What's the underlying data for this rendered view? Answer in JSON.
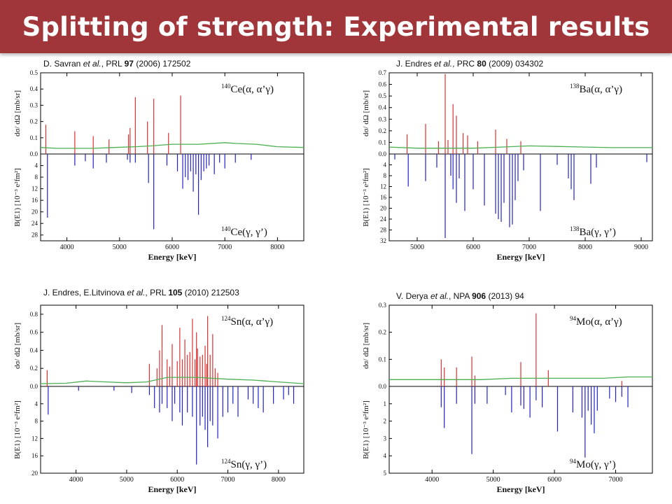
{
  "slide": {
    "title": "Splitting of strength: Experimental results"
  },
  "colors": {
    "title_bg": "#a0363a",
    "red": "#e03030",
    "blue": "#2020d0",
    "green": "#4caf50"
  },
  "panels": [
    {
      "id": "ce140",
      "citation": {
        "authors": "D. Savran",
        "etal": "et al.",
        "journal": ", PRL ",
        "volume": "97",
        "rest": " (2006) 172502"
      },
      "label_top": {
        "pre": "140",
        "sym": "Ce(α, α’γ)"
      },
      "label_bottom": {
        "pre": "140",
        "sym": "Ce(γ, γ’)"
      }
    },
    {
      "id": "ba138",
      "citation": {
        "authors": "J. Endres",
        "etal": "et al.",
        "journal": ", PRC ",
        "volume": "80",
        "rest": " (2009) 034302"
      },
      "label_top": {
        "pre": "138",
        "sym": "Ba(α, α’γ)"
      },
      "label_bottom": {
        "pre": "138",
        "sym": "Ba(γ, γ’)"
      }
    },
    {
      "id": "sn124",
      "citation": {
        "authors": "J. Endres, E.Litvinova",
        "etal": "et al.",
        "journal": ", PRL ",
        "volume": "105",
        "rest": " (2010) 212503"
      },
      "label_top": {
        "pre": "124",
        "sym": "Sn(α, α’γ)"
      },
      "label_bottom": {
        "pre": "124",
        "sym": "Sn(γ, γ’)"
      }
    },
    {
      "id": "mo94",
      "citation": {
        "authors": "V. Derya",
        "etal": "et al.",
        "journal": ", NPA  ",
        "volume": "906",
        "rest": " (2013) 94"
      },
      "label_top": {
        "pre": "94",
        "sym": "Mo(α, α’γ)"
      },
      "label_bottom": {
        "pre": "94",
        "sym": "Mo(γ, γ’)"
      }
    }
  ],
  "chart_data": [
    {
      "type": "bar",
      "title": "",
      "xlabel": "Energy [keV]",
      "ylabel_top": "dσ/ dΩ  [mb/sr]",
      "ylabel_bottom": "B(E1) [10⁻³ e²fm²]",
      "xlim": [
        3500,
        8500
      ],
      "xticks": [
        4000,
        5000,
        6000,
        7000,
        8000
      ],
      "ylim_top": [
        0,
        0.5
      ],
      "yticks_top": [
        "0.0",
        "0.1",
        "0.2",
        "0.3",
        "0.4",
        "0.5"
      ],
      "ylim_bottom": [
        0,
        30
      ],
      "yticks_bottom": [
        "4",
        "8",
        "12",
        "16",
        "20",
        "24",
        "28"
      ],
      "series": [
        {
          "kind": "alpha",
          "x": [
            3600,
            4150,
            4500,
            4800,
            5170,
            5200,
            5300,
            5530,
            5650,
            5930,
            6160
          ],
          "values": [
            0.18,
            0.14,
            0.11,
            0.09,
            0.12,
            0.16,
            0.35,
            0.2,
            0.34,
            0.13,
            0.36
          ]
        },
        {
          "kind": "gamma",
          "x": [
            3630,
            4150,
            4350,
            4500,
            4750,
            5150,
            5200,
            5300,
            5550,
            5650,
            5900,
            6100,
            6200,
            6250,
            6300,
            6350,
            6400,
            6450,
            6500,
            6550,
            6600,
            6650,
            6700,
            6800,
            6900,
            7000,
            7200,
            7500
          ],
          "values": [
            22,
            4,
            2.5,
            5,
            3,
            2,
            3,
            3,
            10,
            26,
            4,
            6,
            12,
            8,
            9,
            6,
            13,
            7,
            21,
            9,
            6,
            5,
            4,
            7,
            3,
            5,
            3,
            2
          ]
        },
        {
          "kind": "threshold",
          "x": [
            3500,
            3800,
            4100,
            4500,
            4900,
            5300,
            5600,
            6000,
            6500,
            7000,
            7200,
            7600,
            8000,
            8500
          ],
          "values": [
            0.04,
            0.035,
            0.035,
            0.035,
            0.04,
            0.045,
            0.05,
            0.06,
            0.06,
            0.07,
            0.065,
            0.06,
            0.045,
            0.04
          ]
        }
      ]
    },
    {
      "type": "bar",
      "title": "",
      "xlabel": "Energy [keV]",
      "ylabel_top": "dσ/ dΩ  [mb/sr]",
      "ylabel_bottom": "B(E1) [10⁻³ e²fm²]",
      "xlim": [
        4500,
        9200
      ],
      "xticks": [
        5000,
        6000,
        7000,
        8000,
        9000
      ],
      "ylim_top": [
        0,
        0.7
      ],
      "yticks_top": [
        "0.0",
        "0.1",
        "0.2",
        "0.3",
        "0.4",
        "0.5",
        "0.6",
        "0.7"
      ],
      "ylim_bottom": [
        0,
        32
      ],
      "yticks_bottom": [
        "4",
        "8",
        "12",
        "16",
        "20",
        "24",
        "28",
        "32"
      ],
      "series": [
        {
          "kind": "alpha",
          "x": [
            4820,
            5150,
            5380,
            5500,
            5550,
            5640,
            5700,
            5820,
            5900,
            6080,
            6400,
            6600,
            6850
          ],
          "values": [
            0.17,
            0.26,
            0.11,
            0.69,
            0.12,
            0.43,
            0.33,
            0.18,
            0.16,
            0.11,
            0.21,
            0.13,
            0.11
          ]
        },
        {
          "kind": "gamma",
          "x": [
            4600,
            4840,
            5150,
            5350,
            5500,
            5600,
            5640,
            5700,
            5750,
            5850,
            6000,
            6200,
            6400,
            6450,
            6500,
            6550,
            6650,
            6700,
            6750,
            6800,
            6900,
            7200,
            7500,
            7700,
            7750,
            7800,
            8100,
            8200,
            9100
          ],
          "values": [
            2,
            12,
            10,
            5,
            31,
            8,
            13,
            18,
            9,
            21,
            13,
            19,
            22,
            24,
            25,
            18,
            27,
            26,
            17,
            10,
            6,
            21,
            4,
            9,
            13,
            17,
            11,
            5,
            3
          ]
        },
        {
          "kind": "threshold",
          "x": [
            4500,
            5000,
            5500,
            6000,
            6500,
            7000,
            7500,
            8000,
            8500,
            9200
          ],
          "values": [
            0.06,
            0.05,
            0.05,
            0.05,
            0.06,
            0.07,
            0.065,
            0.06,
            0.055,
            0.055
          ]
        }
      ]
    },
    {
      "type": "bar",
      "title": "",
      "xlabel": "Energy [keV]",
      "ylabel_top": "dσ/ dΩ  [mb/sr]",
      "ylabel_bottom": "B(E1) [10⁻³ e²fm²]",
      "xlim": [
        3300,
        8500
      ],
      "xticks": [
        4000,
        5000,
        6000,
        7000,
        8000
      ],
      "ylim_top": [
        0,
        0.9
      ],
      "yticks_top": [
        "0.0",
        "0.2",
        "0.4",
        "0.6",
        "0.8"
      ],
      "ylim_bottom": [
        0,
        20
      ],
      "yticks_bottom": [
        "4",
        "8",
        "12",
        "16",
        "20"
      ],
      "series": [
        {
          "kind": "alpha",
          "x": [
            3430,
            5450,
            5600,
            5650,
            5700,
            5800,
            5850,
            5900,
            6000,
            6050,
            6100,
            6150,
            6200,
            6250,
            6300,
            6350,
            6380,
            6400,
            6450,
            6500,
            6550,
            6580,
            6600,
            6650,
            6700,
            6750,
            6800
          ],
          "values": [
            0.18,
            0.25,
            0.2,
            0.4,
            0.68,
            0.3,
            0.22,
            0.47,
            0.28,
            0.65,
            0.3,
            0.52,
            0.35,
            0.38,
            0.75,
            0.3,
            0.6,
            0.42,
            0.33,
            0.35,
            0.45,
            0.25,
            0.78,
            0.35,
            0.58,
            0.2,
            0.15
          ]
        },
        {
          "kind": "gamma",
          "x": [
            3450,
            4050,
            4750,
            5100,
            5450,
            5550,
            5650,
            5700,
            5800,
            5900,
            5950,
            6050,
            6100,
            6200,
            6300,
            6380,
            6450,
            6500,
            6550,
            6600,
            6650,
            6700,
            6800,
            6900,
            7000,
            7100,
            7200,
            7400,
            7500,
            7600,
            7700,
            7900,
            8100,
            8200,
            8300
          ],
          "values": [
            6.5,
            1,
            1,
            1.5,
            2,
            5,
            6,
            4,
            5,
            8,
            4,
            6,
            9,
            6,
            7,
            18,
            9,
            7,
            10,
            14,
            8,
            9,
            12,
            7,
            6,
            4,
            7,
            3,
            4,
            5,
            6,
            4,
            3,
            2,
            4
          ]
        },
        {
          "kind": "threshold",
          "x": [
            3300,
            3800,
            4200,
            4600,
            5000,
            5400,
            5800,
            6400,
            7000,
            7500,
            8000,
            8500
          ],
          "values": [
            0.03,
            0.035,
            0.06,
            0.05,
            0.04,
            0.05,
            0.1,
            0.1,
            0.08,
            0.07,
            0.05,
            0.03
          ]
        }
      ]
    },
    {
      "type": "bar",
      "title": "",
      "xlabel": "Energy [keV]",
      "ylabel_top": "dσ/ dΩ  [mb/sr]",
      "ylabel_bottom": "B(E1) [10⁻³ e²fm²]",
      "xlim": [
        3300,
        7600
      ],
      "xticks": [
        4000,
        5000,
        6000,
        7000
      ],
      "ylim_top": [
        0,
        0.3
      ],
      "yticks_top": [
        "0.0",
        "0.1",
        "0.2",
        "0.3"
      ],
      "ylim_bottom": [
        0,
        5
      ],
      "yticks_bottom": [
        "1",
        "2",
        "3",
        "4",
        "5"
      ],
      "series": [
        {
          "kind": "alpha",
          "x": [
            4150,
            4200,
            4400,
            4650,
            4700,
            5450,
            5700,
            5900,
            7100
          ],
          "values": [
            0.1,
            0.07,
            0.07,
            0.11,
            0.04,
            0.09,
            0.27,
            0.06,
            0.02
          ]
        },
        {
          "kind": "gamma",
          "x": [
            4150,
            4200,
            4400,
            4650,
            4700,
            4900,
            5200,
            5300,
            5450,
            5500,
            5600,
            5700,
            5800,
            6050,
            6300,
            6450,
            6500,
            6550,
            6600,
            6650,
            6700,
            6900,
            7000,
            7100,
            7200
          ],
          "values": [
            1.2,
            2.4,
            1,
            3.9,
            1,
            1,
            0.5,
            1.5,
            1.1,
            1.3,
            1.8,
            0.8,
            1.2,
            2.6,
            1.5,
            1.8,
            4.1,
            1.4,
            2.2,
            2.7,
            1.4,
            0.7,
            0.9,
            0.6,
            1.2
          ]
        },
        {
          "kind": "threshold",
          "x": [
            3300,
            3800,
            4300,
            4800,
            5300,
            5800,
            6300,
            6800,
            7200,
            7600
          ],
          "values": [
            0.025,
            0.025,
            0.025,
            0.025,
            0.03,
            0.03,
            0.03,
            0.03,
            0.035,
            0.035
          ]
        }
      ]
    }
  ]
}
